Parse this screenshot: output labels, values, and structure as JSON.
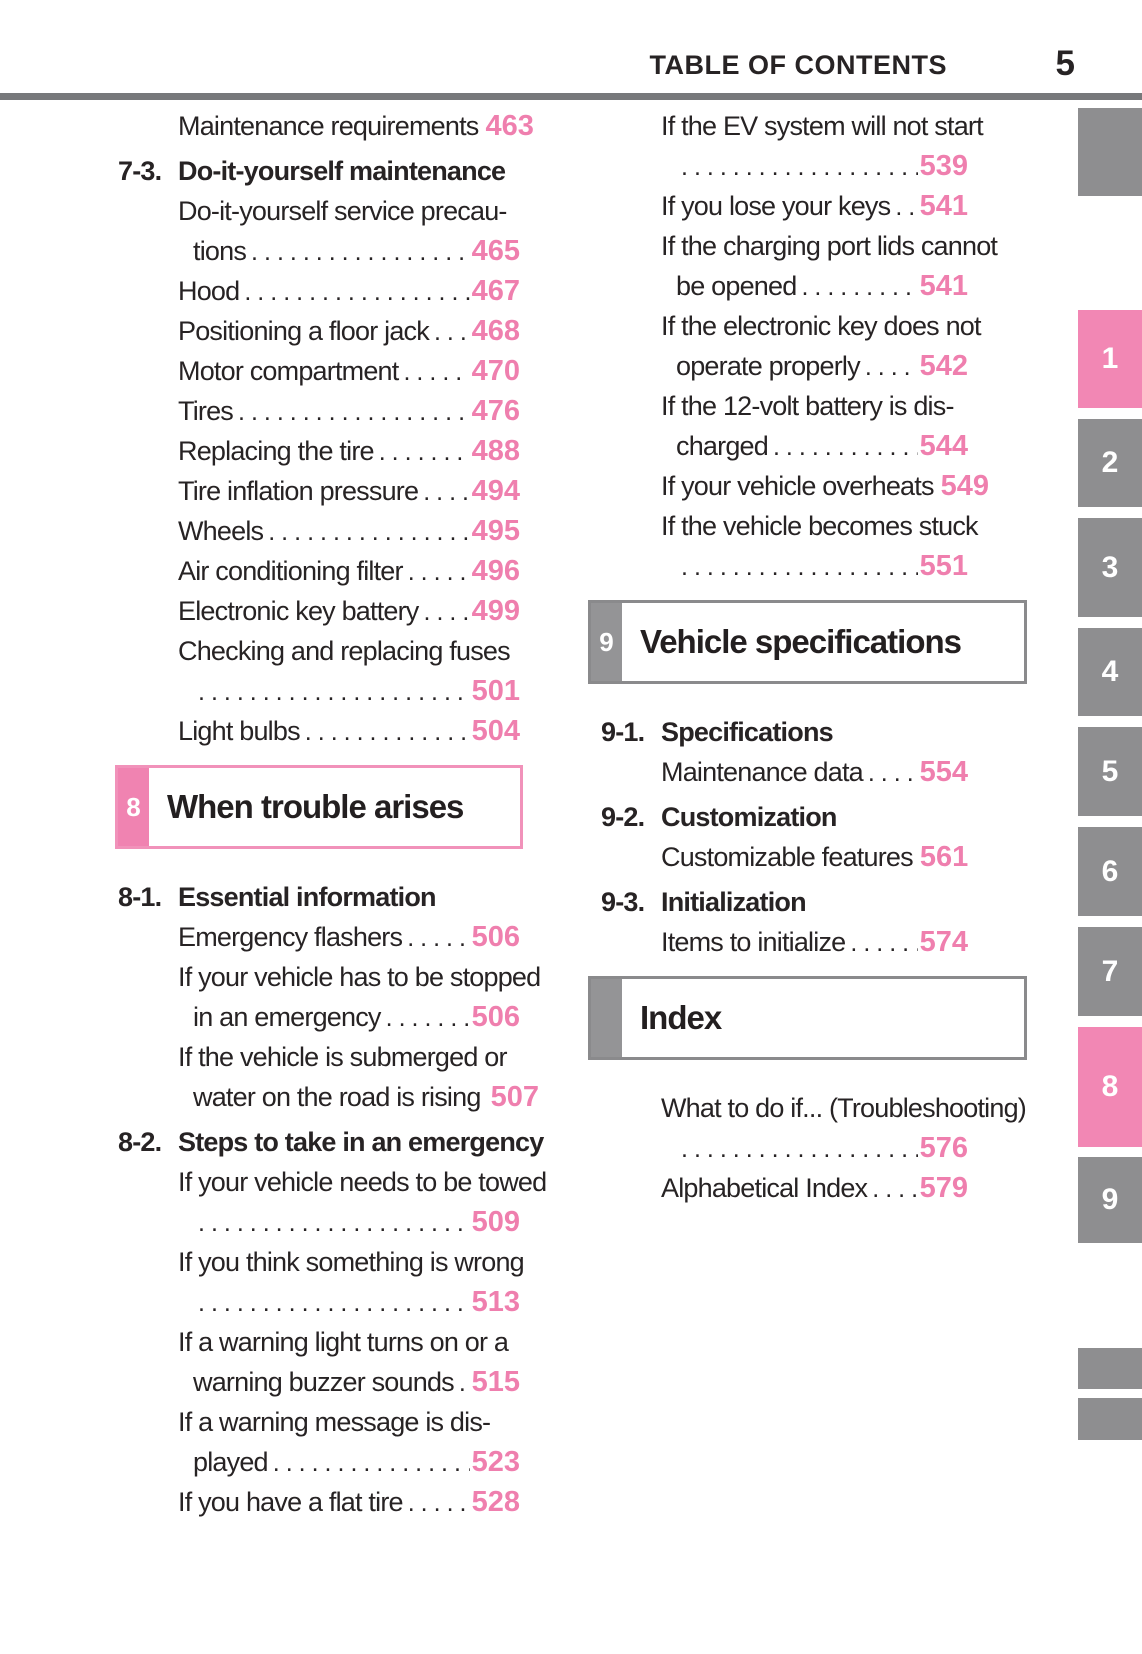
{
  "header": {
    "title": "TABLE OF CONTENTS",
    "page_number": "5"
  },
  "colors": {
    "accent_pink_numbers": "#ef7fae",
    "tab_pink": "#f287b4",
    "tab_gray": "#8e8e90",
    "chapter_square_pink": "#f083b1",
    "chapter_square_gray": "#949496",
    "chapter_border_gray": "#8a8a8c",
    "header_rule_gray": "#77787b",
    "body_text": "#272324"
  },
  "left_column": {
    "rows": [
      {
        "type": "entry",
        "text": "Maintenance requirements",
        "page": "463",
        "dots": true
      },
      {
        "type": "section",
        "num": "7-3.",
        "text": "Do-it-yourself maintenance"
      },
      {
        "type": "entry",
        "text": "Do-it-yourself service precau-"
      },
      {
        "type": "cont",
        "text": "tions",
        "page": "465",
        "dots": true
      },
      {
        "type": "entry",
        "text": "Hood",
        "page": "467",
        "dots": true
      },
      {
        "type": "entry",
        "text": "Positioning a floor jack",
        "page": "468",
        "dots": true
      },
      {
        "type": "entry",
        "text": "Motor compartment",
        "page": "470",
        "dots": true
      },
      {
        "type": "entry",
        "text": "Tires",
        "page": "476",
        "dots": true
      },
      {
        "type": "entry",
        "text": "Replacing the tire",
        "page": "488",
        "dots": true
      },
      {
        "type": "entry",
        "text": "Tire inflation pressure",
        "page": "494",
        "dots": true
      },
      {
        "type": "entry",
        "text": "Wheels",
        "page": "495",
        "dots": true
      },
      {
        "type": "entry",
        "text": "Air conditioning filter",
        "page": "496",
        "dots": true
      },
      {
        "type": "entry",
        "text": "Electronic key battery",
        "page": "499",
        "dots": true
      },
      {
        "type": "entry",
        "text": "Checking and replacing fuses"
      },
      {
        "type": "cont",
        "text": "",
        "page": "501",
        "dots": true
      },
      {
        "type": "entry",
        "text": "Light bulbs",
        "page": "504",
        "dots": true
      },
      {
        "type": "chapter",
        "num": "8",
        "text": "When trouble arises",
        "color": "pink"
      },
      {
        "type": "section",
        "num": "8-1.",
        "text": "Essential information"
      },
      {
        "type": "entry",
        "text": "Emergency flashers",
        "page": "506",
        "dots": true
      },
      {
        "type": "entry",
        "text": "If your vehicle has to be stopped"
      },
      {
        "type": "cont",
        "text": "in an emergency",
        "page": "506",
        "dots": true
      },
      {
        "type": "entry",
        "text": "If the vehicle is submerged or"
      },
      {
        "type": "cont",
        "text": "water on the road is rising",
        "page": "507",
        "dots": false
      },
      {
        "type": "section",
        "num": "8-2.",
        "text": "Steps to take in an emergency"
      },
      {
        "type": "entry",
        "text": "If your vehicle needs to be towed"
      },
      {
        "type": "cont",
        "text": "",
        "page": "509",
        "dots": true
      },
      {
        "type": "entry",
        "text": "If you think something is wrong"
      },
      {
        "type": "cont",
        "text": "",
        "page": "513",
        "dots": true
      },
      {
        "type": "entry",
        "text": "If a warning light turns on or a"
      },
      {
        "type": "cont",
        "text": "warning buzzer sounds",
        "page": "515",
        "dots": true
      },
      {
        "type": "entry",
        "text": "If a warning message is dis-"
      },
      {
        "type": "cont",
        "text": "played",
        "page": "523",
        "dots": true
      },
      {
        "type": "entry",
        "text": "If you have a flat tire",
        "page": "528",
        "dots": true
      }
    ]
  },
  "right_column": {
    "rows": [
      {
        "type": "entry",
        "text": "If the EV system will not start"
      },
      {
        "type": "cont",
        "text": "",
        "page": "539",
        "dots": true
      },
      {
        "type": "entry",
        "text": "If you lose your keys",
        "page": "541",
        "dots": true
      },
      {
        "type": "entry",
        "text": "If the charging port lids cannot"
      },
      {
        "type": "cont",
        "text": "be opened",
        "page": "541",
        "dots": true
      },
      {
        "type": "entry",
        "text": "If the electronic key does not"
      },
      {
        "type": "cont",
        "text": "operate properly",
        "page": "542",
        "dots": true
      },
      {
        "type": "entry",
        "text": "If the 12-volt battery is dis-"
      },
      {
        "type": "cont",
        "text": "charged",
        "page": "544",
        "dots": true
      },
      {
        "type": "entry",
        "text": "If your vehicle overheats",
        "page": "549",
        "dots": true
      },
      {
        "type": "entry",
        "text": "If the vehicle becomes stuck"
      },
      {
        "type": "cont",
        "text": "",
        "page": "551",
        "dots": true
      },
      {
        "type": "chapter",
        "num": "9",
        "text": "Vehicle specifications",
        "color": "gray"
      },
      {
        "type": "section",
        "num": "9-1.",
        "text": "Specifications"
      },
      {
        "type": "entry",
        "text": "Maintenance data",
        "page": "554",
        "dots": true
      },
      {
        "type": "section",
        "num": "9-2.",
        "text": "Customization"
      },
      {
        "type": "entry",
        "text": "Customizable features",
        "page": "561",
        "dots": true
      },
      {
        "type": "section",
        "num": "9-3.",
        "text": "Initialization"
      },
      {
        "type": "entry",
        "text": "Items to initialize",
        "page": "574",
        "dots": true
      },
      {
        "type": "chapter",
        "num": "",
        "text": "Index",
        "color": "gray"
      },
      {
        "type": "entry",
        "text": "What to do if... (Troubleshooting)"
      },
      {
        "type": "cont",
        "text": "",
        "page": "576",
        "dots": true
      },
      {
        "type": "entry",
        "text": "Alphabetical Index",
        "page": "579",
        "dots": true
      }
    ]
  },
  "side_tabs": [
    {
      "label": "",
      "color": "gray"
    },
    {
      "label": "1",
      "color": "pink"
    },
    {
      "label": "2",
      "color": "gray"
    },
    {
      "label": "3",
      "color": "gray"
    },
    {
      "label": "4",
      "color": "gray"
    },
    {
      "label": "5",
      "color": "gray"
    },
    {
      "label": "6",
      "color": "gray"
    },
    {
      "label": "7",
      "color": "gray"
    },
    {
      "label": "8",
      "color": "pink"
    },
    {
      "label": "9",
      "color": "gray"
    },
    {
      "label": "",
      "color": "gray"
    },
    {
      "label": "",
      "color": "gray"
    }
  ]
}
